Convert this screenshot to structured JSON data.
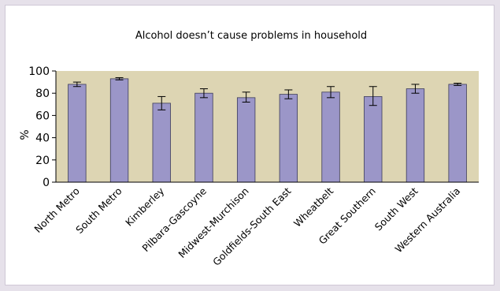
{
  "chart_data": {
    "type": "bar",
    "title": "Alcohol doesn’t cause problems in household",
    "xlabel": "",
    "ylabel": "%",
    "ylim": [
      0,
      100
    ],
    "yticks": [
      0,
      20,
      40,
      60,
      80,
      100
    ],
    "grid": false,
    "error_bars": true,
    "categories": [
      "North Metro",
      "South Metro",
      "Kimberley",
      "Pilbara-Gascoyne",
      "Midwest-Murchison",
      "Goldfields-South East",
      "Wheatbelt",
      "Great Southern",
      "South West",
      "Western Australia"
    ],
    "values": [
      88,
      93,
      71,
      80,
      76,
      79,
      81,
      77,
      84,
      88
    ],
    "error_low": [
      86,
      92,
      65,
      76,
      72,
      75,
      76,
      69,
      80,
      87
    ],
    "error_high": [
      90,
      94,
      77,
      84,
      81,
      83,
      86,
      86,
      88,
      89
    ]
  },
  "colors": {
    "bar_fill": "#9b96c8",
    "bar_stroke": "#3c3c5a",
    "plot_background": "#ddd5b3",
    "axis": "#000000"
  }
}
